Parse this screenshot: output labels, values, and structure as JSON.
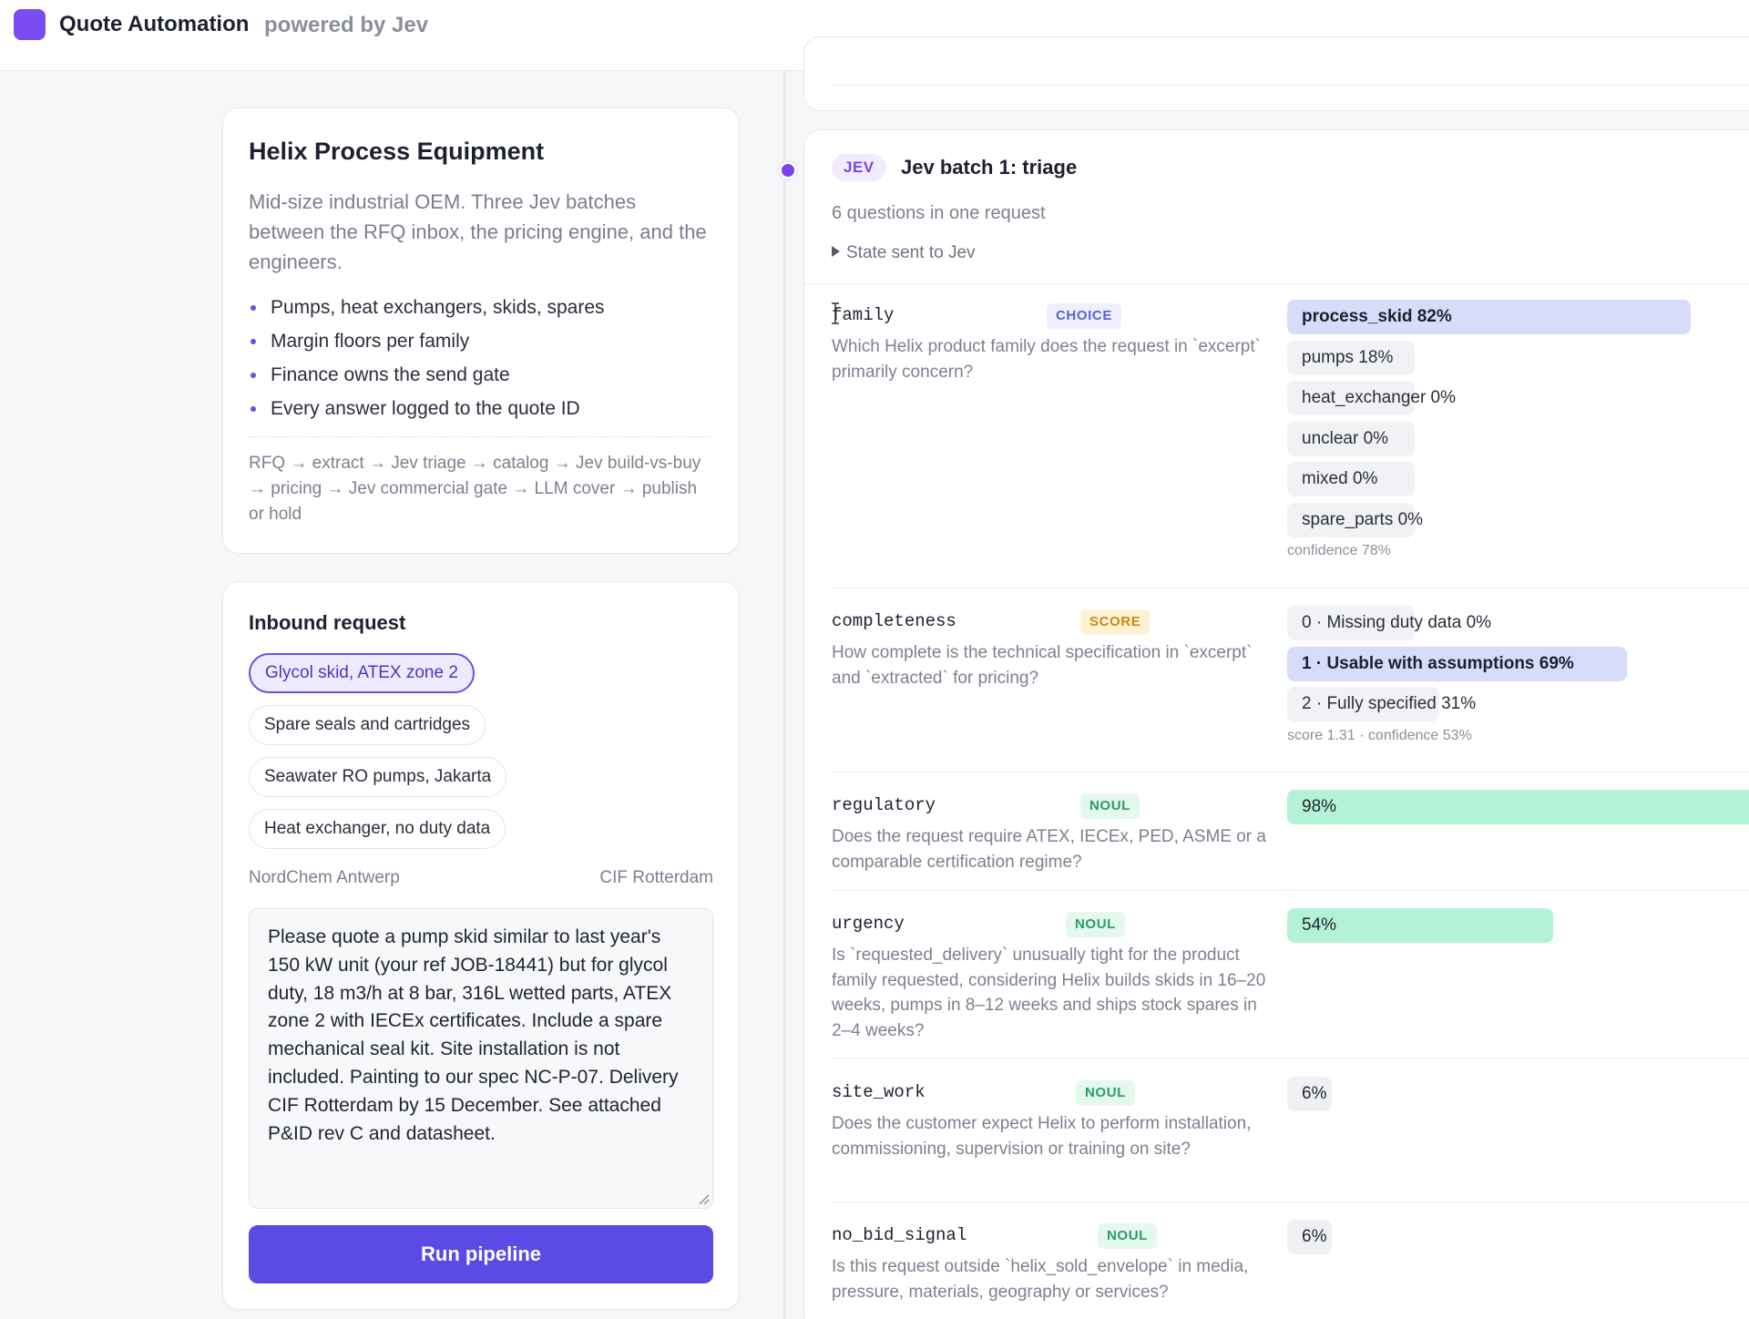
{
  "header": {
    "title": "Quote Automation",
    "subtitle": "powered by Jev",
    "logo_color": "#7b4cf2"
  },
  "company": {
    "title": "Helix Process Equipment",
    "description": "Mid-size industrial OEM. Three Jev batches between the RFQ inbox, the pricing engine, and the engineers.",
    "bullets": [
      "Pumps, heat exchangers, skids, spares",
      "Margin floors per family",
      "Finance owns the send gate",
      "Every answer logged to the quote ID"
    ],
    "flow": "RFQ → extract → Jev triage → catalog → Jev build-vs-buy → pricing → Jev commercial gate → LLM cover → publish or hold"
  },
  "inbound": {
    "title": "Inbound request",
    "scenarios": [
      {
        "label": "Glycol skid, ATEX zone 2",
        "active": true
      },
      {
        "label": "Spare seals and cartridges",
        "active": false
      },
      {
        "label": "Seawater RO pumps, Jakarta",
        "active": false
      },
      {
        "label": "Heat exchanger, no duty data",
        "active": false
      }
    ],
    "customer": "NordChem Antwerp",
    "incoterm": "CIF Rotterdam",
    "request_text": "Please quote a pump skid similar to last year's 150 kW unit (your ref JOB-18441) but for glycol duty, 18 m3/h at 8 bar, 316L wetted parts, ATEX zone 2 with IECEx certificates. Include a spare mechanical seal kit. Site installation is not included. Painting to our spec NC-P-07. Delivery CIF Rotterdam by 15 December. See attached P&ID rev C and datasheet.",
    "run_label": "Run pipeline",
    "accent": "#5b4ae3"
  },
  "batch": {
    "badge": "JEV",
    "title": "Jev batch 1: triage",
    "subtitle": "6 questions in one request",
    "state_toggle": "State sent to Jev",
    "questions": [
      {
        "key": "family",
        "tag": "CHOICE",
        "desc": "Which Helix product family does the request in `excerpt` primarily concern?",
        "options": [
          {
            "label": "process_skid 82%",
            "value": 0.82,
            "selected": true
          },
          {
            "label": "pumps 18%",
            "value": 0.18,
            "selected": false
          },
          {
            "label": "heat_exchanger 0%",
            "value": 0,
            "selected": false
          },
          {
            "label": "unclear 0%",
            "value": 0,
            "selected": false
          },
          {
            "label": "mixed 0%",
            "value": 0,
            "selected": false
          },
          {
            "label": "spare_parts 0%",
            "value": 0,
            "selected": false
          }
        ],
        "meta": "confidence 78%"
      },
      {
        "key": "completeness",
        "tag": "SCORE",
        "desc": "How complete is the technical specification in `excerpt` and `extracted` for pricing?",
        "options": [
          {
            "label": "0 · Missing duty data 0%",
            "value": 0,
            "selected": false
          },
          {
            "label": "1 · Usable with assumptions 69%",
            "value": 0.69,
            "selected": true
          },
          {
            "label": "2 · Fully specified 31%",
            "value": 0.31,
            "selected": false
          }
        ],
        "meta": "score 1.31 · confidence 53%"
      },
      {
        "key": "regulatory",
        "tag": "NOUL",
        "desc": "Does the request require ATEX, IECEx, PED, ASME or a comparable certification regime?",
        "bar": {
          "label": "98%",
          "value": 0.98,
          "level": "high"
        }
      },
      {
        "key": "urgency",
        "tag": "NOUL",
        "desc": "Is `requested_delivery` unusually tight for the product family requested, considering Helix builds skids in 16–20 weeks, pumps in 8–12 weeks and ships stock spares in 2–4 weeks?",
        "bar": {
          "label": "54%",
          "value": 0.54,
          "level": "high"
        }
      },
      {
        "key": "site_work",
        "tag": "NOUL",
        "desc": "Does the customer expect Helix to perform installation, commissioning, supervision or training on site?",
        "bar": {
          "label": "6%",
          "value": 0.06,
          "level": "low"
        }
      },
      {
        "key": "no_bid_signal",
        "tag": "NOUL",
        "desc": "Is this request outside `helix_sold_envelope` in media, pressure, materials, geography or services?",
        "bar": {
          "label": "6%",
          "value": 0.06,
          "level": "low"
        }
      }
    ]
  }
}
